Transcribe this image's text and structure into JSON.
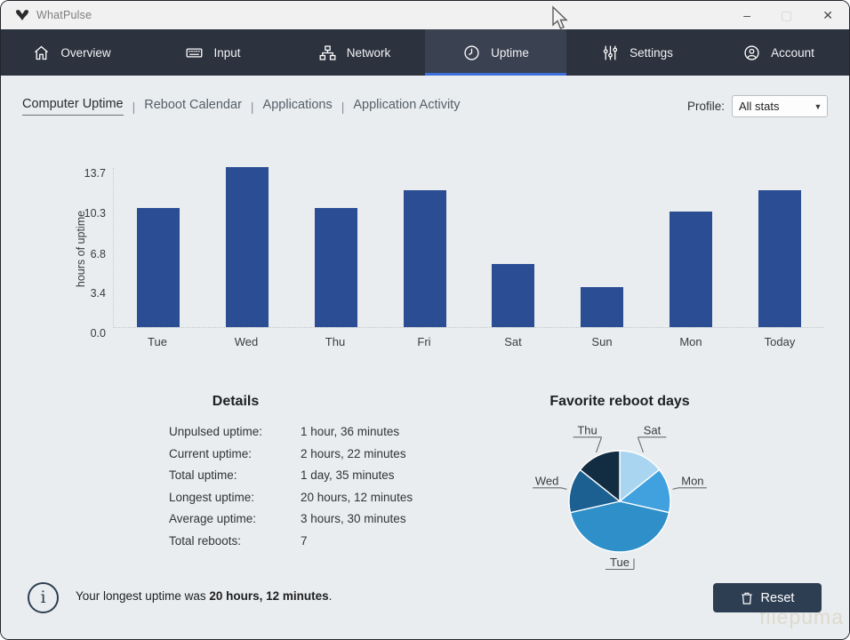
{
  "window": {
    "title": "WhatPulse",
    "controls": {
      "minimize": "–",
      "maximize": "▢",
      "close": "✕"
    }
  },
  "nav": {
    "active_index": 3,
    "accent_color": "#3e6fd9",
    "tabs": [
      {
        "label": "Overview",
        "icon": "home-icon"
      },
      {
        "label": "Input",
        "icon": "keyboard-icon"
      },
      {
        "label": "Network",
        "icon": "network-icon"
      },
      {
        "label": "Uptime",
        "icon": "clock-icon"
      },
      {
        "label": "Settings",
        "icon": "sliders-icon"
      },
      {
        "label": "Account",
        "icon": "person-icon"
      }
    ]
  },
  "subnav": {
    "items": [
      "Computer Uptime",
      "Reboot Calendar",
      "Applications",
      "Application Activity"
    ],
    "active_index": 0,
    "separator": "|",
    "profile_label": "Profile:",
    "profile_value": "All stats"
  },
  "chart_data": [
    {
      "type": "bar",
      "categories": [
        "Tue",
        "Wed",
        "Thu",
        "Fri",
        "Sat",
        "Sun",
        "Mon",
        "Today"
      ],
      "values": [
        10.2,
        13.7,
        10.2,
        11.7,
        5.4,
        3.4,
        9.9,
        11.7
      ],
      "ylabel": "hours of uptime",
      "xlabel": "",
      "ylim": [
        0,
        13.7
      ],
      "yticks": [
        "0.0",
        "3.4",
        "6.8",
        "10.3",
        "13.7"
      ],
      "grid": false,
      "bar_color": "#2b4d94"
    },
    {
      "type": "pie",
      "title": "Favorite reboot days",
      "labels": [
        "Sat",
        "Mon",
        "Tue",
        "Wed",
        "Thu"
      ],
      "values": [
        1,
        1,
        3,
        1,
        1
      ],
      "colors": [
        "#a9d5f1",
        "#41a1de",
        "#2e8fc9",
        "#1b6090",
        "#122c42"
      ],
      "start_angle_deg": 0,
      "legend_position": "outside-labels"
    }
  ],
  "details": {
    "heading": "Details",
    "rows": [
      {
        "label": "Unpulsed uptime:",
        "value": "1 hour, 36 minutes"
      },
      {
        "label": "Current uptime:",
        "value": "2 hours, 22 minutes"
      },
      {
        "label": "Total uptime:",
        "value": "1 day, 35 minutes"
      },
      {
        "label": "Longest uptime:",
        "value": "20 hours, 12 minutes"
      },
      {
        "label": "Average uptime:",
        "value": "3 hours, 30 minutes"
      },
      {
        "label": "Total reboots:",
        "value": "7"
      }
    ]
  },
  "footer": {
    "message_prefix": "Your longest uptime was ",
    "message_bold": "20 hours, 12 minutes",
    "message_suffix": ".",
    "info_glyph": "i",
    "reset_label": "Reset"
  },
  "watermark": "filepuma"
}
